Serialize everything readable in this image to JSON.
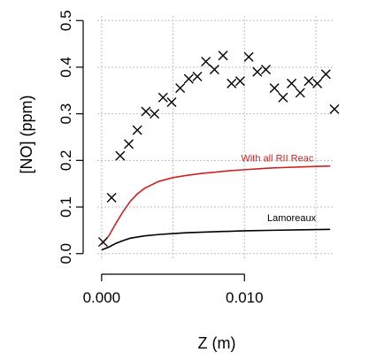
{
  "chart_data": {
    "type": "scatter",
    "xlabel": "Z (m)",
    "ylabel": "[NO] (ppm)",
    "xlim": [
      -0.0003,
      0.0163
    ],
    "ylim": [
      -0.01,
      0.51
    ],
    "x_ticks": [
      0.0,
      0.01
    ],
    "x_tick_labels": [
      "0.000",
      "0.010"
    ],
    "y_ticks": [
      0.0,
      0.1,
      0.2,
      0.3,
      0.4,
      0.5
    ],
    "y_tick_labels": [
      "0.0",
      "0.1",
      "0.2",
      "0.3",
      "0.4",
      "0.5"
    ],
    "grid_x": [
      0.0,
      0.005,
      0.01,
      0.015
    ],
    "grid_y": [
      0.0,
      0.1,
      0.2,
      0.3,
      0.4,
      0.5
    ],
    "grid": true,
    "series": [
      {
        "kind": "scatter",
        "marker": "x",
        "color": "#000000",
        "points": [
          [
            0.0001,
            0.025
          ],
          [
            0.0007,
            0.12
          ],
          [
            0.0013,
            0.21
          ],
          [
            0.0019,
            0.235
          ],
          [
            0.0025,
            0.265
          ],
          [
            0.0031,
            0.305
          ],
          [
            0.0037,
            0.3
          ],
          [
            0.0043,
            0.335
          ],
          [
            0.0049,
            0.325
          ],
          [
            0.0055,
            0.355
          ],
          [
            0.0061,
            0.375
          ],
          [
            0.0067,
            0.38
          ],
          [
            0.0073,
            0.412
          ],
          [
            0.0079,
            0.395
          ],
          [
            0.0085,
            0.425
          ],
          [
            0.0091,
            0.365
          ],
          [
            0.0097,
            0.37
          ],
          [
            0.0103,
            0.422
          ],
          [
            0.0109,
            0.39
          ],
          [
            0.0115,
            0.395
          ],
          [
            0.0121,
            0.355
          ],
          [
            0.0127,
            0.335
          ],
          [
            0.0133,
            0.365
          ],
          [
            0.0139,
            0.345
          ],
          [
            0.0145,
            0.37
          ],
          [
            0.0151,
            0.365
          ],
          [
            0.0157,
            0.385
          ],
          [
            0.0163,
            0.31
          ]
        ]
      },
      {
        "kind": "line",
        "name": "With all RII Reac",
        "color": "#cc2222",
        "points": [
          [
            0.0,
            0.02
          ],
          [
            0.0005,
            0.038
          ],
          [
            0.001,
            0.065
          ],
          [
            0.0015,
            0.09
          ],
          [
            0.002,
            0.112
          ],
          [
            0.0025,
            0.128
          ],
          [
            0.003,
            0.14
          ],
          [
            0.004,
            0.155
          ],
          [
            0.005,
            0.163
          ],
          [
            0.006,
            0.168
          ],
          [
            0.007,
            0.172
          ],
          [
            0.008,
            0.175
          ],
          [
            0.009,
            0.178
          ],
          [
            0.01,
            0.18
          ],
          [
            0.011,
            0.182
          ],
          [
            0.012,
            0.184
          ],
          [
            0.013,
            0.185
          ],
          [
            0.014,
            0.186
          ],
          [
            0.015,
            0.187
          ],
          [
            0.016,
            0.188
          ]
        ]
      },
      {
        "kind": "line",
        "name": "Lamoreaux",
        "color": "#000000",
        "points": [
          [
            0.0,
            0.008
          ],
          [
            0.0005,
            0.014
          ],
          [
            0.001,
            0.022
          ],
          [
            0.0015,
            0.028
          ],
          [
            0.002,
            0.033
          ],
          [
            0.003,
            0.038
          ],
          [
            0.004,
            0.041
          ],
          [
            0.005,
            0.043
          ],
          [
            0.006,
            0.045
          ],
          [
            0.008,
            0.047
          ],
          [
            0.01,
            0.049
          ],
          [
            0.012,
            0.05
          ],
          [
            0.014,
            0.051
          ],
          [
            0.016,
            0.052
          ]
        ]
      }
    ],
    "annotations": [
      {
        "text": "With all RII Reac",
        "x": 0.0123,
        "y": 0.198,
        "color": "#cc2222"
      },
      {
        "text": "Lamoreaux",
        "x": 0.0133,
        "y": 0.07,
        "color": "#000000"
      }
    ]
  }
}
